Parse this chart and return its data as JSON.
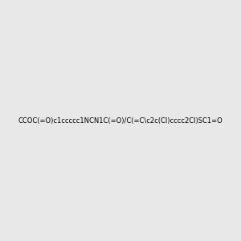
{
  "smiles": "CCOC(=O)c1ccccc1NCN1C(=O)/C(=C\\c2c(Cl)cccc2Cl)SC1=O",
  "title": "",
  "bg_color": "#e8e8e8",
  "figsize": [
    3.0,
    3.0
  ],
  "dpi": 100
}
